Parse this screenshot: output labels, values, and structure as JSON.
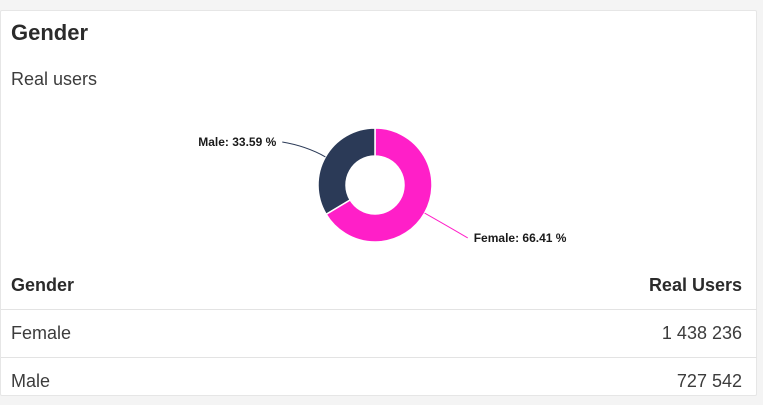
{
  "card": {
    "title": "Gender",
    "subtitle": "Real users"
  },
  "chart_data": {
    "type": "pie",
    "title": "",
    "donut": true,
    "slices": [
      {
        "name": "Female",
        "value": 66.41,
        "label": "Female: 66.41 %",
        "color": "#ff1fc8"
      },
      {
        "name": "Male",
        "value": 33.59,
        "label": "Male: 33.59 %",
        "color": "#2b3a57"
      }
    ]
  },
  "table": {
    "headers": [
      "Gender",
      "Real Users"
    ],
    "rows": [
      {
        "gender": "Female",
        "users": "1 438 236"
      },
      {
        "gender": "Male",
        "users": "727 542"
      }
    ]
  }
}
